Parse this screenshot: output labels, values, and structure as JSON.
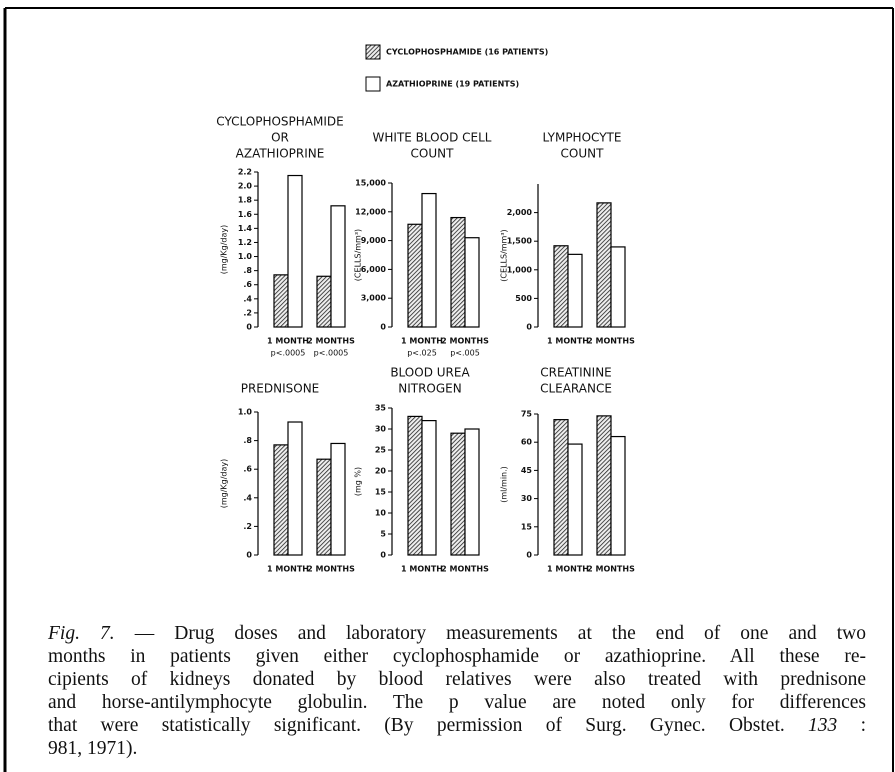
{
  "legend": {
    "items": [
      {
        "label": "CYCLOPHOSPHAMIDE (16 PATIENTS)",
        "fill": "hatch"
      },
      {
        "label": "AZATHIOPRINE (19 PATIENTS)",
        "fill": "white"
      }
    ]
  },
  "chart_data": [
    {
      "type": "bar",
      "title": [
        "CYCLOPHOSPHAMIDE",
        "OR",
        "AZATHIOPRINE"
      ],
      "y_label": "(mg/Kg/day)",
      "categories": [
        "1 MONTH",
        "2 MONTHS"
      ],
      "category_notes": [
        "p<.0005",
        "p<.0005"
      ],
      "series": [
        {
          "values": [
            0.74,
            0.72
          ]
        },
        {
          "values": [
            2.15,
            1.72
          ]
        }
      ],
      "ylim": [
        0,
        2.2
      ],
      "yticks": [
        0,
        {
          "value": 0.2,
          "label": ".2"
        },
        {
          "value": 0.4,
          "label": ".4"
        },
        {
          "value": 0.6,
          "label": ".6"
        },
        {
          "value": 0.8,
          "label": ".8"
        },
        {
          "value": 1.0,
          "label": "1.0"
        },
        1.2,
        1.4,
        1.6,
        1.8,
        {
          "value": 2.0,
          "label": "2.0"
        },
        2.2
      ]
    },
    {
      "type": "bar",
      "title": [
        "WHITE BLOOD CELL",
        "COUNT"
      ],
      "y_label": "(CELLS/mm³)",
      "categories": [
        "1 MONTH",
        "2 MONTHS"
      ],
      "category_notes": [
        "p<.025",
        "p<.005"
      ],
      "series": [
        {
          "values": [
            10700,
            11400
          ]
        },
        {
          "values": [
            13900,
            9300
          ]
        }
      ],
      "ylim": [
        0,
        15000
      ],
      "yticks": [
        0,
        {
          "value": 3000,
          "label": "3,000"
        },
        {
          "value": 6000,
          "label": "6,000"
        },
        {
          "value": 9000,
          "label": "9,000"
        },
        {
          "value": 12000,
          "label": "12,000"
        },
        {
          "value": 15000,
          "label": "15,000"
        }
      ]
    },
    {
      "type": "bar",
      "title": [
        "LYMPHOCYTE",
        "COUNT"
      ],
      "y_label": "(CELLS/mm³)",
      "categories": [
        "1 MONTH",
        "2 MONTHS"
      ],
      "series": [
        {
          "values": [
            1420,
            2170
          ]
        },
        {
          "values": [
            1270,
            1400
          ]
        }
      ],
      "ylim": [
        0,
        2500
      ],
      "yticks": [
        0,
        500,
        {
          "value": 1000,
          "label": "1,000"
        },
        {
          "value": 1500,
          "label": "1,500"
        },
        {
          "value": 2000,
          "label": "2,000"
        }
      ]
    },
    {
      "type": "bar",
      "title": [
        "PREDNISONE"
      ],
      "y_label": "(mg/Kg/day)",
      "categories": [
        "1 MONTH",
        "2 MONTHS"
      ],
      "series": [
        {
          "values": [
            0.77,
            0.67
          ]
        },
        {
          "values": [
            0.93,
            0.78
          ]
        }
      ],
      "ylim": [
        0,
        1.0
      ],
      "yticks": [
        0,
        {
          "value": 0.2,
          "label": ".2"
        },
        {
          "value": 0.4,
          "label": ".4"
        },
        {
          "value": 0.6,
          "label": ".6"
        },
        {
          "value": 0.8,
          "label": ".8"
        },
        {
          "value": 1.0,
          "label": "1.0"
        }
      ]
    },
    {
      "type": "bar",
      "title": [
        "BLOOD UREA",
        "NITROGEN"
      ],
      "y_label": "(mg %)",
      "categories": [
        "1 MONTH",
        "2 MONTHS"
      ],
      "series": [
        {
          "values": [
            33,
            29
          ]
        },
        {
          "values": [
            32,
            30
          ]
        }
      ],
      "ylim": [
        0,
        35
      ],
      "yticks": [
        0,
        5,
        10,
        15,
        20,
        25,
        30,
        35
      ]
    },
    {
      "type": "bar",
      "title": [
        "CREATININE",
        "CLEARANCE"
      ],
      "y_label": "(ml/min.)",
      "categories": [
        "1 MONTH",
        "2 MONTHS"
      ],
      "series": [
        {
          "values": [
            72,
            74
          ]
        },
        {
          "values": [
            59,
            63
          ]
        }
      ],
      "ylim": [
        0,
        75
      ],
      "yticks": [
        0,
        15,
        30,
        45,
        60,
        75
      ]
    }
  ],
  "caption": {
    "lines": [
      [
        {
          "text": "Fig. 7.",
          "italic": true
        },
        {
          "text": " — Drug doses and laboratory measurements at the end of one and two",
          "italic": false
        }
      ],
      [
        {
          "text": "months in patients given either cyclophosphamide or azathioprine. All these re-",
          "italic": false
        }
      ],
      [
        {
          "text": "cipients of kidneys donated by blood relatives were also treated with prednisone",
          "italic": false
        }
      ],
      [
        {
          "text": "and horse-antilymphocyte globulin. The p value are noted only for differences",
          "italic": false
        }
      ],
      [
        {
          "text": "that were statistically significant. (By permission of Surg. Gynec. Obstet.",
          "italic": false
        },
        {
          "text": "133",
          "italic": true
        },
        {
          "text": ":",
          "italic": false
        }
      ],
      [
        {
          "text": "981, 1971).",
          "italic": false
        }
      ]
    ]
  }
}
